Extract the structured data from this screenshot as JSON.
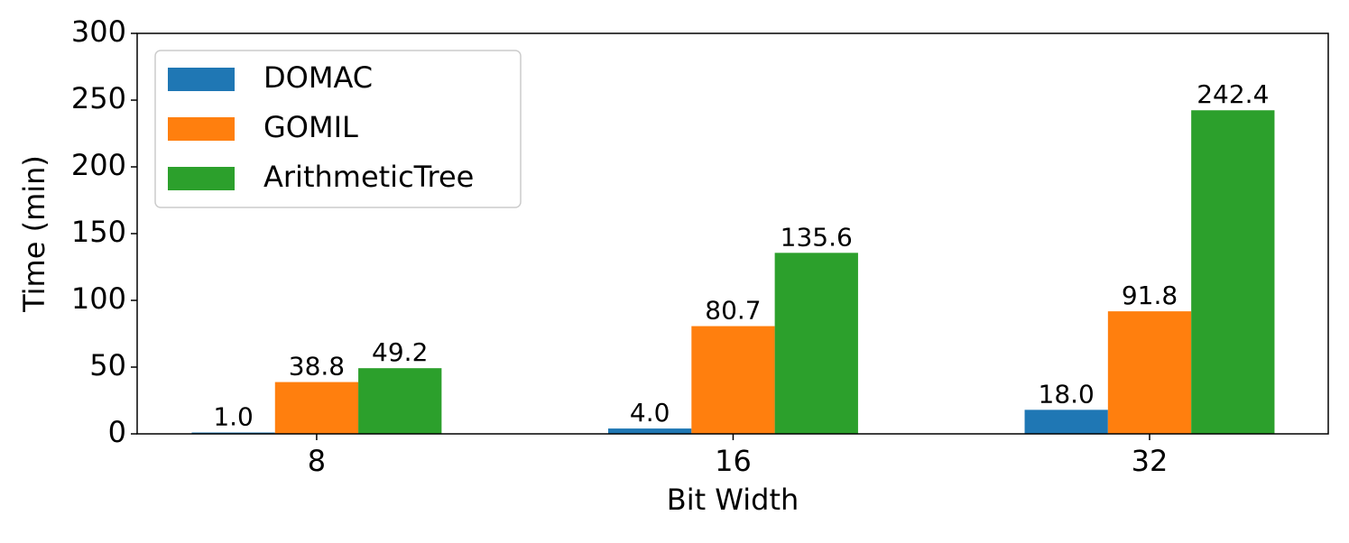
{
  "chart_data": {
    "type": "bar",
    "x_label": "Bit Width",
    "y_label": "Time (min)",
    "categories": [
      "8",
      "16",
      "32"
    ],
    "series": [
      {
        "name": "DOMAC",
        "color": "#1f77b4",
        "values": [
          1.0,
          4.0,
          18.0
        ],
        "value_labels": [
          "1.0",
          "4.0",
          "18.0"
        ]
      },
      {
        "name": "GOMIL",
        "color": "#ff7f0e",
        "values": [
          38.8,
          80.7,
          91.8
        ],
        "value_labels": [
          "38.8",
          "80.7",
          "91.8"
        ]
      },
      {
        "name": "ArithmeticTree",
        "color": "#2ca02c",
        "values": [
          49.2,
          135.6,
          242.4
        ],
        "value_labels": [
          "49.2",
          "135.6",
          "242.4"
        ]
      }
    ],
    "ylim": [
      0,
      300
    ],
    "yticks": [
      0,
      50,
      100,
      150,
      200,
      250,
      300
    ],
    "legend": "upper-left"
  }
}
